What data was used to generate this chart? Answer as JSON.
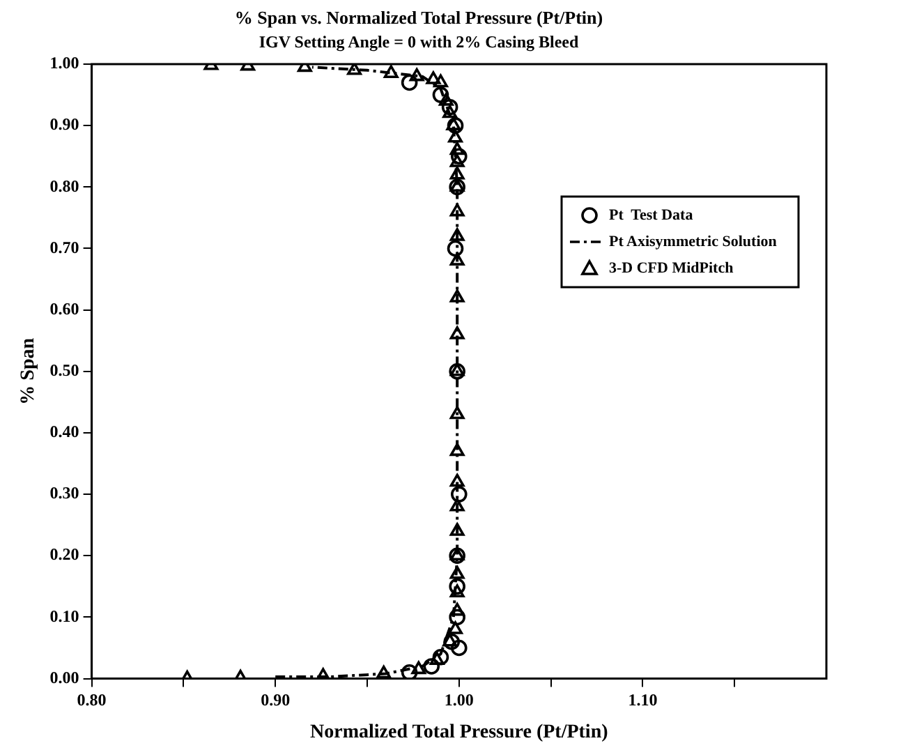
{
  "chart_data": {
    "type": "scatter",
    "title": "% Span vs. Normalized Total Pressure (Pt/Ptin)",
    "subtitle": "IGV Setting Angle = 0 with 2% Casing Bleed",
    "xlabel": "Normalized Total Pressure (Pt/Ptin)",
    "ylabel": "% Span",
    "xlim": [
      0.8,
      1.2
    ],
    "ylim": [
      0,
      1
    ],
    "xticks": [
      {
        "value": 0.8,
        "label": "0.80"
      },
      {
        "value": 0.85,
        "label": null
      },
      {
        "value": 0.9,
        "label": "0.90"
      },
      {
        "value": 0.95,
        "label": null
      },
      {
        "value": 1.0,
        "label": "1.00"
      },
      {
        "value": 1.05,
        "label": null
      },
      {
        "value": 1.1,
        "label": "1.10"
      },
      {
        "value": 1.15,
        "label": null
      }
    ],
    "yticks": [
      {
        "value": 0,
        "label": "0.00"
      },
      {
        "value": 0.1,
        "label": "0.10"
      },
      {
        "value": 0.2,
        "label": "0.20"
      },
      {
        "value": 0.3,
        "label": "0.30"
      },
      {
        "value": 0.4,
        "label": "0.40"
      },
      {
        "value": 0.5,
        "label": "0.50"
      },
      {
        "value": 0.6,
        "label": "0.60"
      },
      {
        "value": 0.7,
        "label": "0.70"
      },
      {
        "value": 0.8,
        "label": "0.80"
      },
      {
        "value": 0.9,
        "label": "0.90"
      },
      {
        "value": 1.0,
        "label": "1.00"
      }
    ],
    "grid": false,
    "legend": "top right",
    "series": [
      {
        "name": "Pt  Test Data",
        "type": "scatter",
        "marker": "circle",
        "color": "#000000",
        "x": [
          0.973,
          0.99,
          0.995,
          0.998,
          1.0,
          0.999,
          0.998,
          0.999,
          1.0,
          0.999,
          0.999,
          0.999,
          1.0,
          0.996,
          0.99,
          0.985,
          0.973
        ],
        "values": [
          0.97,
          0.95,
          0.93,
          0.9,
          0.85,
          0.8,
          0.7,
          0.5,
          0.3,
          0.2,
          0.15,
          0.1,
          0.05,
          0.06,
          0.035,
          0.02,
          0.01
        ]
      },
      {
        "name": "Pt Axisymmetric Solution",
        "type": "line",
        "marker": "none",
        "line_style": "dashed",
        "color": "#000000",
        "x": [
          0.9,
          0.93,
          0.96,
          0.98,
          0.99,
          0.997,
          0.999,
          0.999,
          0.997,
          0.99,
          0.98,
          0.95,
          0.92
        ],
        "values": [
          0.003,
          0.003,
          0.008,
          0.02,
          0.04,
          0.1,
          0.2,
          0.8,
          0.9,
          0.96,
          0.98,
          0.99,
          0.995
        ]
      },
      {
        "name": "3-D CFD MidPitch",
        "type": "scatter",
        "marker": "triangle",
        "color": "#000000",
        "x": [
          0.865,
          0.885,
          0.916,
          0.943,
          0.963,
          0.977,
          0.986,
          0.99,
          0.993,
          0.995,
          0.997,
          0.998,
          0.999,
          0.999,
          0.999,
          0.999,
          0.999,
          0.999,
          0.999,
          0.999,
          0.999,
          0.999,
          0.999,
          0.999,
          0.999,
          0.999,
          0.999,
          0.999,
          0.999,
          0.999,
          0.999,
          0.998,
          0.995,
          0.988,
          0.978,
          0.959,
          0.926,
          0.881,
          0.852
        ],
        "values": [
          0.998,
          0.997,
          0.995,
          0.99,
          0.985,
          0.98,
          0.975,
          0.97,
          0.94,
          0.92,
          0.9,
          0.88,
          0.86,
          0.84,
          0.82,
          0.8,
          0.76,
          0.72,
          0.68,
          0.62,
          0.56,
          0.5,
          0.43,
          0.37,
          0.32,
          0.28,
          0.24,
          0.2,
          0.17,
          0.14,
          0.11,
          0.08,
          0.06,
          0.03,
          0.015,
          0.008,
          0.004,
          0.001,
          0.0
        ]
      }
    ]
  }
}
